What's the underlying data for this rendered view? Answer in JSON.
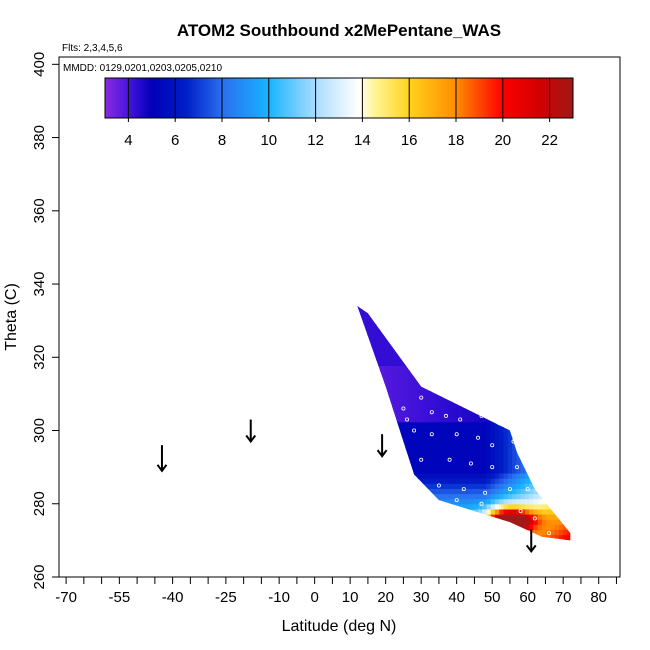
{
  "chart_data": {
    "type": "heatmap",
    "title": "ATOM2 Southbound x2MePentane_WAS",
    "flights_note": "Flts: 2,3,4,5,6",
    "dates_note": "MMDD: 0129,0201,0203,0205,0210",
    "xlabel": "Latitude (deg N)",
    "ylabel": "Theta (C)",
    "xlim": [
      -72,
      86
    ],
    "ylim": [
      260,
      402
    ],
    "x_ticks": [
      -70,
      -55,
      -40,
      -25,
      -10,
      0,
      10,
      20,
      30,
      40,
      50,
      60,
      70,
      80
    ],
    "x_tick_labels": [
      "-70",
      "-55",
      "-40",
      "-25",
      "-10",
      "0",
      "10",
      "20",
      "30",
      "40",
      "50",
      "60",
      "70",
      "80"
    ],
    "x_minor_ticks": [
      -65,
      -60,
      -50,
      -45,
      -35,
      -30,
      -20,
      -15,
      -5,
      5,
      15,
      25,
      35,
      45,
      55,
      65,
      75,
      85
    ],
    "y_ticks": [
      260,
      280,
      300,
      320,
      340,
      360,
      380,
      400
    ],
    "y_tick_labels": [
      "260",
      "280",
      "300",
      "320",
      "340",
      "360",
      "380",
      "400"
    ],
    "colorbar": {
      "range": [
        3,
        23
      ],
      "ticks": [
        4,
        6,
        8,
        10,
        12,
        14,
        16,
        18,
        20,
        22
      ],
      "tick_labels": [
        "4",
        "6",
        "8",
        "10",
        "12",
        "14",
        "16",
        "18",
        "20",
        "22"
      ],
      "stops": [
        {
          "v": 3,
          "c": "#8a2be2"
        },
        {
          "v": 4.2,
          "c": "#3a0fd8"
        },
        {
          "v": 5,
          "c": "#0000b8"
        },
        {
          "v": 6.5,
          "c": "#0020c8"
        },
        {
          "v": 8,
          "c": "#2a6ef0"
        },
        {
          "v": 10,
          "c": "#18b4ff"
        },
        {
          "v": 12,
          "c": "#a9dcff"
        },
        {
          "v": 13.8,
          "c": "#ffffff"
        },
        {
          "v": 14.5,
          "c": "#fff59a"
        },
        {
          "v": 16,
          "c": "#ffd21c"
        },
        {
          "v": 18,
          "c": "#ff8c00"
        },
        {
          "v": 20,
          "c": "#ff0000"
        },
        {
          "v": 21.5,
          "c": "#d40000"
        },
        {
          "v": 23,
          "c": "#a01818"
        }
      ]
    },
    "arrows_lat": [
      -43,
      -18,
      19,
      61
    ],
    "field_extent": {
      "upper_edge": [
        [
          12,
          334
        ],
        [
          15,
          332
        ],
        [
          30,
          312
        ],
        [
          55,
          300
        ],
        [
          57,
          294
        ],
        [
          62,
          284
        ],
        [
          72,
          272
        ]
      ],
      "lower_edge": [
        [
          12,
          334
        ],
        [
          20,
          312
        ],
        [
          25,
          297
        ],
        [
          28,
          288
        ],
        [
          35,
          281
        ],
        [
          45,
          278
        ],
        [
          55,
          275
        ],
        [
          64,
          271
        ],
        [
          72,
          270
        ]
      ]
    },
    "sample_points": [
      [
        25,
        306
      ],
      [
        26,
        303
      ],
      [
        30,
        309
      ],
      [
        33,
        305
      ],
      [
        37,
        304
      ],
      [
        41,
        303
      ],
      [
        47,
        304
      ],
      [
        51,
        305
      ],
      [
        52,
        302
      ],
      [
        55,
        302
      ],
      [
        28,
        300
      ],
      [
        33,
        299
      ],
      [
        40,
        299
      ],
      [
        46,
        298
      ],
      [
        50,
        296
      ],
      [
        56,
        297
      ],
      [
        30,
        292
      ],
      [
        38,
        292
      ],
      [
        44,
        291
      ],
      [
        50,
        290
      ],
      [
        57,
        290
      ],
      [
        28,
        286
      ],
      [
        35,
        285
      ],
      [
        42,
        284
      ],
      [
        48,
        283
      ],
      [
        55,
        284
      ],
      [
        60,
        284
      ],
      [
        40,
        281
      ],
      [
        47,
        280
      ],
      [
        52,
        279
      ],
      [
        58,
        278
      ],
      [
        62,
        276
      ],
      [
        50,
        274
      ],
      [
        56,
        273
      ],
      [
        66,
        272
      ]
    ]
  }
}
